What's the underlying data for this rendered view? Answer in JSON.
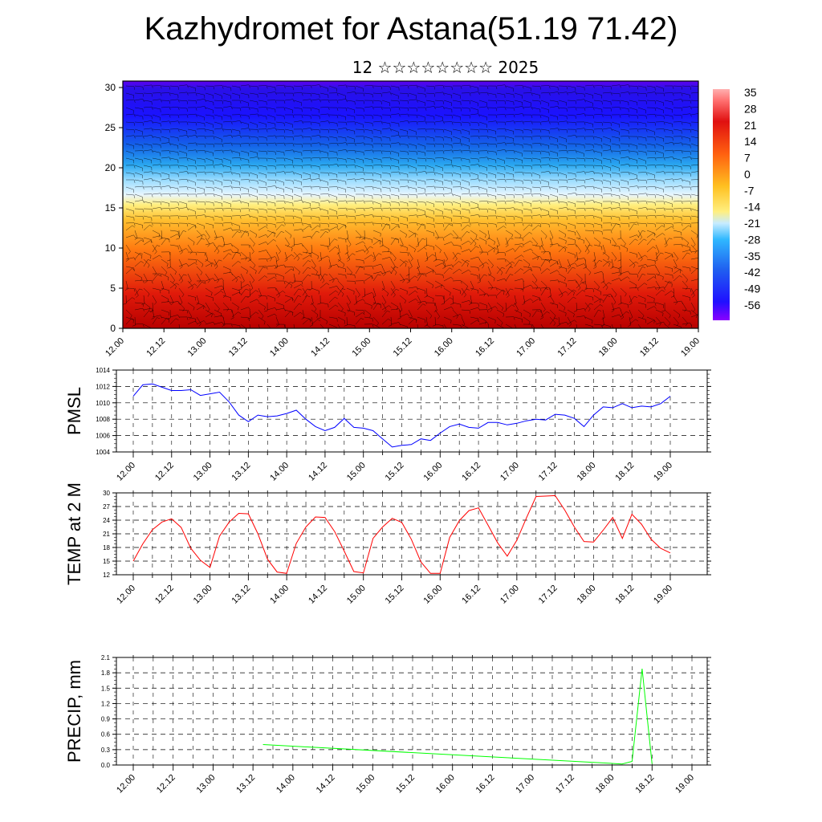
{
  "title": "Kazhydromet for Astana(51.19 71.42)",
  "subtitle": "12 ☆☆☆☆☆☆☆☆ 2025",
  "chart_data": [
    {
      "type": "heatmap",
      "title": "",
      "x_tick_labels": [
        "12.00",
        "12.12",
        "13.00",
        "13.12",
        "14.00",
        "14.12",
        "15.00",
        "15.12",
        "16.00",
        "16.12",
        "17.00",
        "17.12",
        "18.00",
        "18.12",
        "19.00"
      ],
      "y_ticks": [
        0,
        5,
        10,
        15,
        20,
        25,
        30
      ],
      "ylim": [
        0,
        30.8
      ],
      "colorbar_labels": [
        "35",
        "28",
        "21",
        "14",
        "7",
        "0",
        "-7",
        "-14",
        "-21",
        "-28",
        "-35",
        "-42",
        "-49",
        "-56"
      ],
      "overlay": "wind barbs",
      "colors": {
        "warm": "#d81010",
        "mid": "#ffef80",
        "cool": "#3cb4ff",
        "cold": "#1a10ff",
        "top": "#8a00ff"
      }
    },
    {
      "type": "line",
      "ylabel": "PMSL",
      "ylim": [
        1004,
        1014
      ],
      "y_ticks": [
        1004,
        1006,
        1008,
        1010,
        1012,
        1014
      ],
      "x_tick_labels": [
        "12.00",
        "12.12",
        "13.00",
        "13.12",
        "14.00",
        "14.12",
        "15.00",
        "15.12",
        "16.00",
        "16.12",
        "17.00",
        "17.12",
        "18.00",
        "18.12",
        "19.00"
      ],
      "x": [
        0,
        3,
        6,
        9,
        12,
        15,
        18,
        21,
        24,
        27,
        30,
        33,
        36,
        39,
        42,
        45,
        48,
        51,
        54,
        57,
        60,
        63,
        66,
        69,
        72,
        75,
        78,
        81,
        84,
        87,
        90,
        93,
        96,
        99,
        102,
        105,
        108,
        111,
        114,
        117,
        120,
        123,
        126,
        129,
        132,
        135,
        138,
        141,
        144,
        147,
        150,
        153,
        156,
        159,
        162,
        165,
        168
      ],
      "values": [
        1010.8,
        1012.2,
        1012.3,
        1011.9,
        1011.5,
        1011.5,
        1011.6,
        1010.9,
        1011.1,
        1011.3,
        1010.1,
        1008.5,
        1007.7,
        1008.5,
        1008.3,
        1008.4,
        1008.7,
        1009.1,
        1008.0,
        1007.1,
        1006.6,
        1007.0,
        1008.1,
        1007.0,
        1006.9,
        1006.6,
        1005.6,
        1004.6,
        1004.8,
        1004.9,
        1005.6,
        1005.4,
        1006.3,
        1007.1,
        1007.4,
        1007.0,
        1006.9,
        1007.6,
        1007.6,
        1007.3,
        1007.5,
        1007.8,
        1008.0,
        1007.9,
        1008.6,
        1008.5,
        1008.1,
        1007.1,
        1008.5,
        1009.5,
        1009.4,
        1009.9,
        1009.4,
        1009.6,
        1009.5,
        1009.9,
        1010.8
      ],
      "color": "#0000ff"
    },
    {
      "type": "line",
      "ylabel": "TEMP at 2 M",
      "ylim": [
        12,
        30
      ],
      "y_ticks": [
        12,
        15,
        18,
        21,
        24,
        27,
        30
      ],
      "x_tick_labels": [
        "12.00",
        "12.12",
        "13.00",
        "13.12",
        "14.00",
        "14.12",
        "15.00",
        "15.12",
        "16.00",
        "16.12",
        "17.00",
        "17.12",
        "18.00",
        "18.12",
        "19.00"
      ],
      "x": [
        0,
        3,
        6,
        9,
        12,
        15,
        18,
        21,
        24,
        27,
        30,
        33,
        36,
        39,
        42,
        45,
        48,
        51,
        54,
        57,
        60,
        63,
        66,
        69,
        72,
        75,
        78,
        81,
        84,
        87,
        90,
        93,
        96,
        99,
        102,
        105,
        108,
        111,
        114,
        117,
        120,
        123,
        126,
        129,
        132,
        135,
        138,
        141,
        144,
        147,
        150,
        153,
        156,
        159,
        162,
        165,
        168
      ],
      "values": [
        15.0,
        18.8,
        21.9,
        23.6,
        24.3,
        22.4,
        17.8,
        15.2,
        13.6,
        20.5,
        23.6,
        25.5,
        25.4,
        21.0,
        15.4,
        12.6,
        12.3,
        18.9,
        22.5,
        24.7,
        24.6,
        21.5,
        17.2,
        12.7,
        12.4,
        20.0,
        22.5,
        24.4,
        23.5,
        19.8,
        14.8,
        12.3,
        12.3,
        20.2,
        23.9,
        26.1,
        26.7,
        22.9,
        19.0,
        16.1,
        19.6,
        24.5,
        29.2,
        29.3,
        29.4,
        26.2,
        22.5,
        19.3,
        19.2,
        21.8,
        24.6,
        20.0,
        25.3,
        23.1,
        19.8,
        17.8,
        16.8
      ],
      "color": "#ff0000"
    },
    {
      "type": "bar",
      "ylabel": "PRECIP, mm",
      "ylim": [
        0,
        2.1
      ],
      "y_ticks": [
        "0.0",
        "0.3",
        "0.6",
        "0.9",
        "1.2",
        "1.5",
        "1.8",
        "2.1"
      ],
      "x_tick_labels": [
        "12.00",
        "12.12",
        "13.00",
        "13.12",
        "14.00",
        "14.12",
        "15.00",
        "15.12",
        "16.00",
        "16.12",
        "17.00",
        "17.12",
        "18.00",
        "18.12",
        "19.00"
      ],
      "x": [
        39,
        147,
        150,
        153,
        156
      ],
      "values": [
        0.4,
        0.02,
        0.07,
        1.88,
        0.02
      ],
      "color": "#00ff00"
    }
  ]
}
